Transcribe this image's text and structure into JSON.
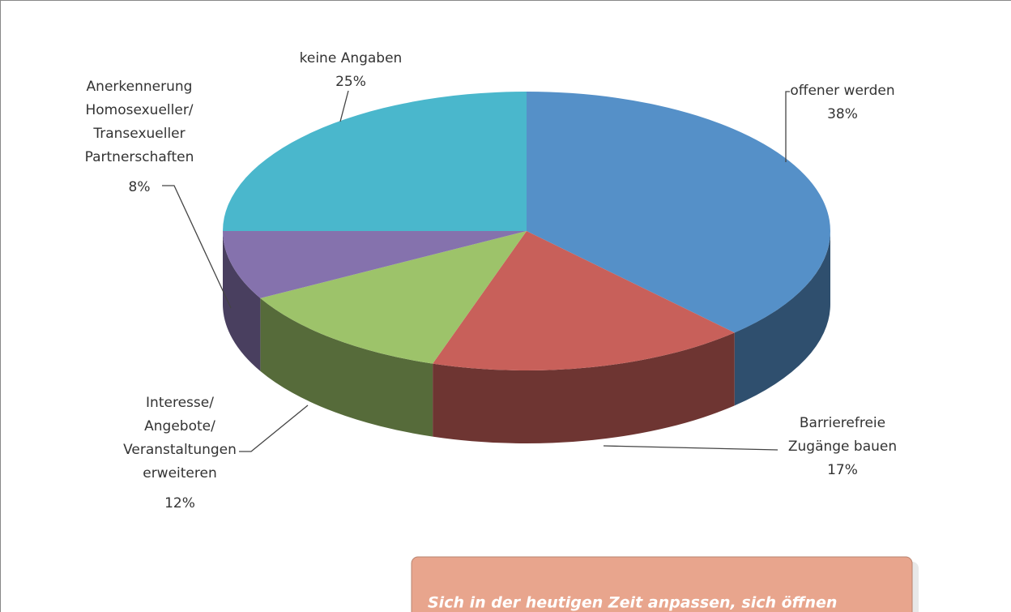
{
  "chart_data": {
    "type": "pie3d",
    "categories": [
      [
        "offener werden"
      ],
      [
        "Barrierefreie",
        "Zugänge bauen"
      ],
      [
        "Interesse/",
        "Angebote/",
        "Veranstaltungen",
        "erweiteren"
      ],
      [
        "Anerkennerung",
        "Homosexueller/",
        "Transexueller",
        "Partnerschaften"
      ],
      [
        "keine Angaben"
      ]
    ],
    "values": [
      38,
      17,
      12,
      8,
      25
    ],
    "value_labels": [
      "38%",
      "17%",
      "12%",
      "8%",
      "25%"
    ],
    "colors": [
      "#5590c8",
      "#c8605a",
      "#9dc36a",
      "#8572ad",
      "#4ab7cc"
    ]
  },
  "callout": {
    "text": "Sich in der heutigen Zeit anpassen, sich öffnen"
  }
}
